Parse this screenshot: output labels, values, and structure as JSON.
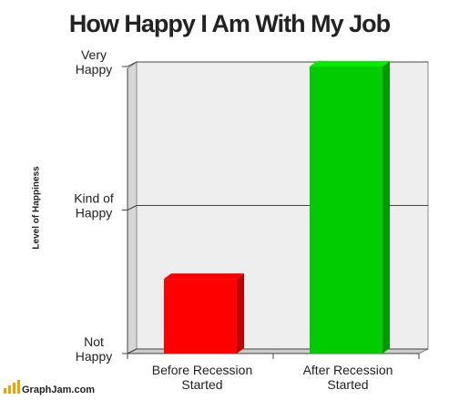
{
  "chart_data": {
    "type": "bar",
    "title": "How Happy I Am With My Job",
    "y_label": "Level of Happiness",
    "categories": [
      "Before Recession Started",
      "After Recession Started"
    ],
    "values": [
      26,
      100
    ],
    "colors": [
      "#ff0000",
      "#00cc00"
    ],
    "ylim": [
      0,
      100
    ],
    "yticks": [
      {
        "value": 0,
        "label": "Not Happy"
      },
      {
        "value": 50,
        "label": "Kind of Happy"
      },
      {
        "value": 100,
        "label": "Very Happy"
      }
    ],
    "grid": true,
    "watermark": "GraphJam.com"
  }
}
